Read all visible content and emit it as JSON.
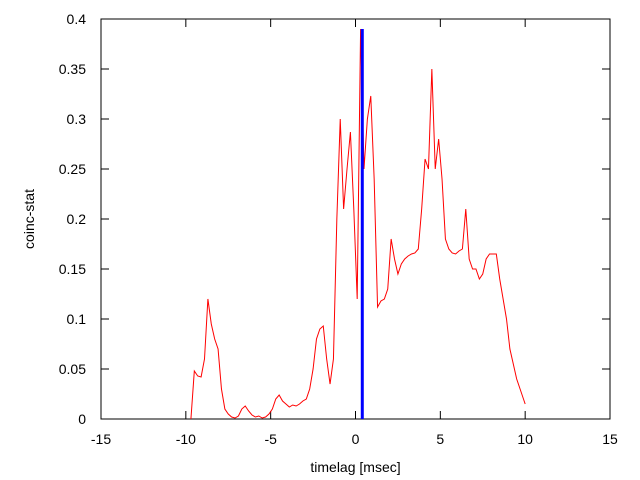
{
  "chart_data": {
    "type": "line",
    "title": "",
    "xlabel": "timelag [msec]",
    "ylabel": "coinc-stat",
    "xlim": [
      -15,
      15
    ],
    "ylim": [
      0,
      0.4
    ],
    "xticks": [
      -15,
      -10,
      -5,
      0,
      5,
      10,
      15
    ],
    "yticks": [
      0,
      0.05,
      0.1,
      0.15,
      0.2,
      0.25,
      0.3,
      0.35,
      0.4
    ],
    "xtick_labels": [
      "-15",
      "-10",
      "-5",
      "0",
      "5",
      "10",
      "15"
    ],
    "ytick_labels": [
      "0",
      "0.05",
      "0.1",
      "0.15",
      "0.2",
      "0.25",
      "0.3",
      "0.35",
      "0.4"
    ],
    "grid": false,
    "legend": "none",
    "colors": {
      "series": "#ff0000",
      "marker": "#0000ff",
      "axes": "#000000"
    },
    "series": [
      {
        "x": [
          -9.7,
          -9.5,
          -9.3,
          -9.1,
          -8.9,
          -8.7,
          -8.5,
          -8.3,
          -8.1,
          -7.9,
          -7.7,
          -7.5,
          -7.3,
          -7.1,
          -6.9,
          -6.7,
          -6.5,
          -6.3,
          -6.1,
          -5.9,
          -5.7,
          -5.5,
          -5.3,
          -5.1,
          -4.9,
          -4.7,
          -4.5,
          -4.3,
          -4.1,
          -3.9,
          -3.7,
          -3.5,
          -3.3,
          -3.1,
          -2.9,
          -2.7,
          -2.5,
          -2.3,
          -2.1,
          -1.9,
          -1.7,
          -1.5,
          -1.3,
          -1.1,
          -0.9,
          -0.7,
          -0.5,
          -0.3,
          -0.1,
          0.1,
          0.3,
          0.5,
          0.7,
          0.9,
          1.1,
          1.3,
          1.5,
          1.7,
          1.9,
          2.1,
          2.3,
          2.5,
          2.7,
          2.9,
          3.1,
          3.3,
          3.5,
          3.7,
          3.9,
          4.1,
          4.3,
          4.5,
          4.7,
          4.9,
          5.1,
          5.3,
          5.5,
          5.7,
          5.9,
          6.1,
          6.3,
          6.5,
          6.7,
          6.9,
          7.1,
          7.3,
          7.5,
          7.7,
          7.9,
          8.1,
          8.3,
          8.5,
          8.7,
          8.9,
          9.1,
          9.3,
          9.5,
          9.7,
          9.9,
          10.0
        ],
        "y": [
          0.0,
          0.048,
          0.043,
          0.042,
          0.06,
          0.12,
          0.095,
          0.08,
          0.07,
          0.03,
          0.01,
          0.005,
          0.002,
          0.001,
          0.003,
          0.01,
          0.013,
          0.008,
          0.004,
          0.002,
          0.003,
          0.001,
          0.002,
          0.005,
          0.01,
          0.02,
          0.024,
          0.018,
          0.015,
          0.012,
          0.014,
          0.013,
          0.015,
          0.018,
          0.02,
          0.03,
          0.05,
          0.08,
          0.09,
          0.093,
          0.06,
          0.035,
          0.06,
          0.2,
          0.3,
          0.21,
          0.25,
          0.287,
          0.21,
          0.12,
          0.39,
          0.25,
          0.3,
          0.323,
          0.24,
          0.112,
          0.118,
          0.12,
          0.13,
          0.18,
          0.16,
          0.145,
          0.155,
          0.16,
          0.163,
          0.165,
          0.166,
          0.17,
          0.21,
          0.26,
          0.25,
          0.35,
          0.25,
          0.28,
          0.24,
          0.18,
          0.17,
          0.166,
          0.165,
          0.168,
          0.17,
          0.21,
          0.16,
          0.15,
          0.15,
          0.14,
          0.145,
          0.16,
          0.165,
          0.165,
          0.165,
          0.14,
          0.12,
          0.1,
          0.07,
          0.055,
          0.04,
          0.03,
          0.02,
          0.015
        ]
      }
    ],
    "marker_line": {
      "x": 0.4,
      "y_from": 0,
      "y_to": 0.39
    }
  }
}
